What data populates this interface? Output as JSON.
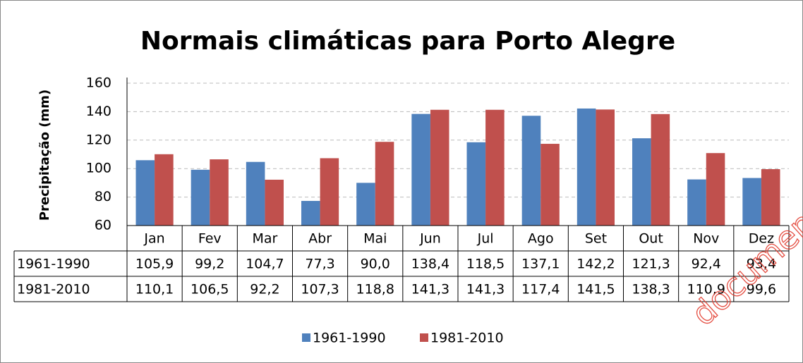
{
  "chart_data": {
    "type": "bar",
    "title": "Normais climáticas para Porto Alegre",
    "y_label": "Precipitação (mm)",
    "categories": [
      "Jan",
      "Fev",
      "Mar",
      "Abr",
      "Mai",
      "Jun",
      "Jul",
      "Ago",
      "Set",
      "Out",
      "Nov",
      "Dez"
    ],
    "series": [
      {
        "name": "1961-1990",
        "color": "#4f81bd",
        "values": [
          105.9,
          99.2,
          104.7,
          77.3,
          90.0,
          138.4,
          118.5,
          137.1,
          142.2,
          121.3,
          92.4,
          93.4
        ],
        "value_labels": [
          "105,9",
          "99,2",
          "104,7",
          "77,3",
          "90,0",
          "138,4",
          "118,5",
          "137,1",
          "142,2",
          "121,3",
          "92,4",
          "93,4"
        ]
      },
      {
        "name": "1981-2010",
        "color": "#c0504d",
        "values": [
          110.1,
          106.5,
          92.2,
          107.3,
          118.8,
          141.3,
          141.3,
          117.4,
          141.5,
          138.3,
          110.9,
          99.6
        ],
        "value_labels": [
          "110,1",
          "106,5",
          "92,2",
          "107,3",
          "118,8",
          "141,3",
          "141,3",
          "117,4",
          "141,5",
          "138,3",
          "110,9",
          "99,6"
        ]
      }
    ],
    "ylim": [
      60,
      160
    ],
    "yticks": [
      60,
      80,
      100,
      120,
      140,
      160
    ],
    "grid": true,
    "legend": "bottom",
    "watermark": "document"
  }
}
